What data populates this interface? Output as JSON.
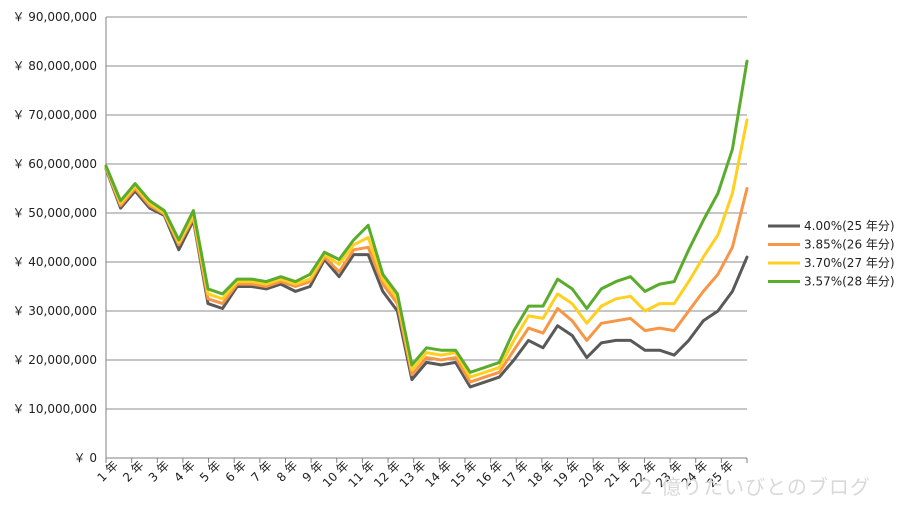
{
  "chart_data": {
    "type": "line",
    "title": "",
    "xlabel": "",
    "ylabel": "",
    "ylim": [
      0,
      90000000
    ],
    "yticks": [
      0,
      10000000,
      20000000,
      30000000,
      40000000,
      50000000,
      60000000,
      70000000,
      80000000,
      90000000
    ],
    "ytick_labels": [
      "￥ 0",
      "￥ 10,000,000",
      "￥ 20,000,000",
      "￥ 30,000,000",
      "￥ 40,000,000",
      "￥ 50,000,000",
      "￥ 60,000,000",
      "￥ 70,000,000",
      "￥ 80,000,000",
      "￥ 90,000,000"
    ],
    "xtick_labels": [
      "1 年",
      "2 年",
      "3 年",
      "4 年",
      "5 年",
      "6 年",
      "7 年",
      "8 年",
      "9 年",
      "10 年",
      "11 年",
      "12 年",
      "13 年",
      "14 年",
      "15 年",
      "16 年",
      "17 年",
      "18 年",
      "19 年",
      "20 年",
      "21 年",
      "22 年",
      "23 年",
      "24 年",
      "25 年"
    ],
    "grid": "horizontal",
    "legend_position": "right",
    "series": [
      {
        "name": "4.00%(25 年分)",
        "color": "#595959",
        "values": [
          59.0,
          51.0,
          54.5,
          51.0,
          49.5,
          42.5,
          48.5,
          31.5,
          30.5,
          35.0,
          35.0,
          34.5,
          35.5,
          34.0,
          35.0,
          40.5,
          37.0,
          41.5,
          41.5,
          34.0,
          30.0,
          16.0,
          19.5,
          19.0,
          19.5,
          14.5,
          15.5,
          16.5,
          20.0,
          24.0,
          22.5,
          27.0,
          25.0,
          20.5,
          23.5,
          24.0,
          24.0,
          22.0,
          22.0,
          21.0,
          24.0,
          28.0,
          30.0,
          34.0,
          41.0
        ]
      },
      {
        "name": "3.85%(26 年分)",
        "color": "#f79646",
        "values": [
          59.2,
          51.5,
          55.0,
          51.5,
          49.8,
          43.5,
          49.0,
          32.5,
          31.5,
          35.5,
          35.5,
          35.0,
          36.0,
          35.0,
          36.0,
          41.0,
          38.0,
          42.5,
          43.0,
          35.5,
          31.5,
          17.0,
          20.5,
          20.0,
          20.5,
          15.5,
          16.5,
          17.5,
          22.0,
          26.5,
          25.5,
          30.5,
          28.0,
          24.0,
          27.5,
          28.0,
          28.5,
          26.0,
          26.5,
          26.0,
          30.0,
          34.0,
          37.5,
          43.0,
          55.0
        ]
      },
      {
        "name": "3.70%(27 年分)",
        "color": "#ffd020",
        "values": [
          59.4,
          52.0,
          55.5,
          52.0,
          50.0,
          44.0,
          49.5,
          33.5,
          32.5,
          36.0,
          36.0,
          35.5,
          36.5,
          35.5,
          36.5,
          41.5,
          39.5,
          43.5,
          45.0,
          36.5,
          32.5,
          18.0,
          21.5,
          21.0,
          21.5,
          16.5,
          17.5,
          18.5,
          24.0,
          29.0,
          28.5,
          33.5,
          31.5,
          27.5,
          31.0,
          32.5,
          33.0,
          30.0,
          31.5,
          31.5,
          36.0,
          41.0,
          45.5,
          54.0,
          69.0
        ]
      },
      {
        "name": "3.57%(28 年分)",
        "color": "#5aac2c",
        "values": [
          59.6,
          52.5,
          56.0,
          52.5,
          50.5,
          44.5,
          50.5,
          34.5,
          33.5,
          36.5,
          36.5,
          36.0,
          37.0,
          36.0,
          37.5,
          42.0,
          40.5,
          44.5,
          47.5,
          37.5,
          33.5,
          19.0,
          22.5,
          22.0,
          22.0,
          17.5,
          18.5,
          19.5,
          26.0,
          31.0,
          31.0,
          36.5,
          34.5,
          30.5,
          34.5,
          36.0,
          37.0,
          34.0,
          35.5,
          36.0,
          42.5,
          48.5,
          54.0,
          63.0,
          81.0
        ]
      }
    ]
  },
  "watermark": "2 億りたいびとのブログ"
}
